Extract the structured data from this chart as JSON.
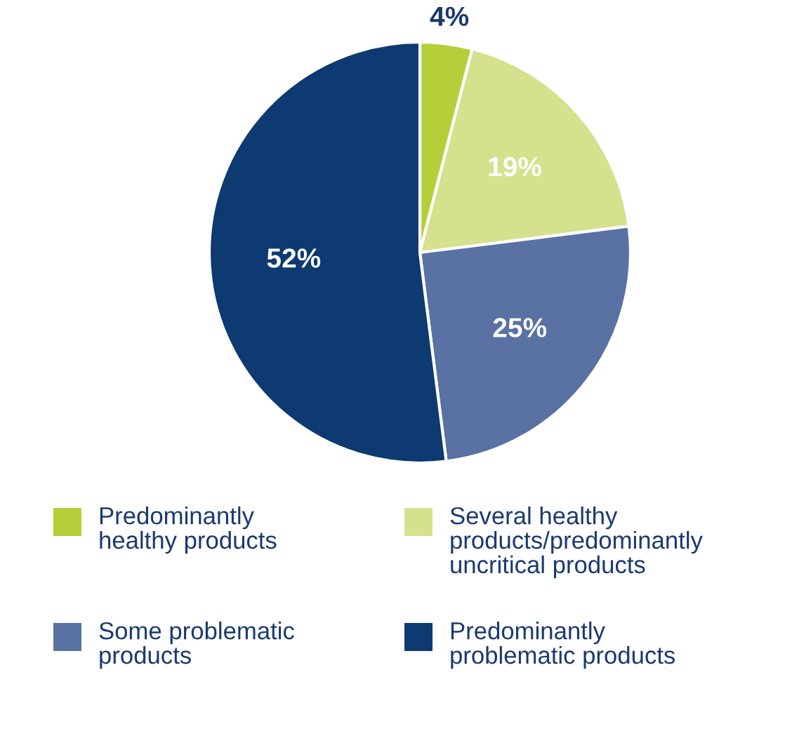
{
  "chart_data": {
    "type": "pie",
    "categories": [
      "Predominantly\nhealthy products",
      "Several healthy\nproducts/predominantly\nuncritical products",
      "Some problematic\nproducts",
      "Predominantly\nproblematic products"
    ],
    "values": [
      4,
      19,
      25,
      52
    ],
    "colors": [
      "#b5cf3a",
      "#d5e18c",
      "#5a71a3",
      "#0d3a70"
    ],
    "value_labels": [
      "4%",
      "19%",
      "25%",
      "52%"
    ],
    "legend": "bottom"
  }
}
